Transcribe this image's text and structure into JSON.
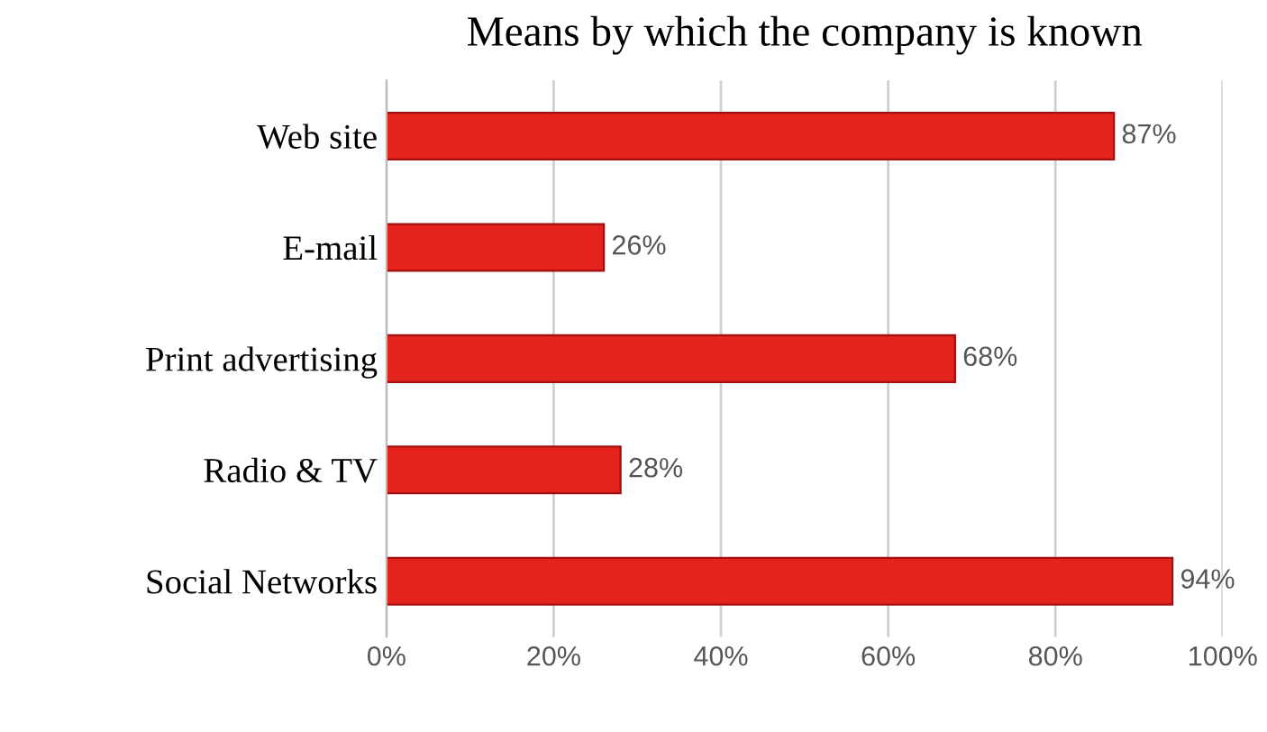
{
  "chart_data": {
    "type": "bar",
    "orientation": "horizontal",
    "title": "Means by which the company is known",
    "categories": [
      "Web site",
      "E-mail",
      "Print advertising",
      "Radio & TV",
      "Social Networks"
    ],
    "values": [
      87,
      26,
      68,
      28,
      94
    ],
    "value_labels": [
      "87%",
      "26%",
      "68%",
      "28%",
      "94%"
    ],
    "color": "#e5231d",
    "xlim": [
      0,
      100
    ],
    "xticks": [
      {
        "value": 0,
        "label": "0%"
      },
      {
        "value": 20,
        "label": "20%"
      },
      {
        "value": 40,
        "label": "40%"
      },
      {
        "value": 60,
        "label": "60%"
      },
      {
        "value": 80,
        "label": "80%"
      },
      {
        "value": 100,
        "label": "100%"
      }
    ],
    "grid": "x"
  }
}
